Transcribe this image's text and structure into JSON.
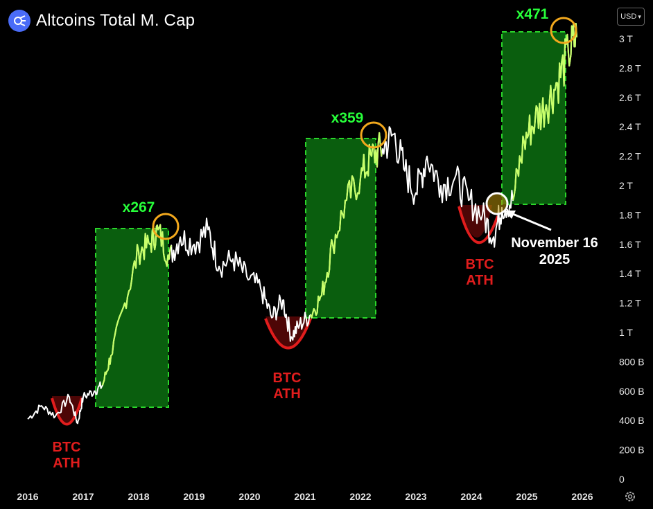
{
  "header": {
    "title": "Altcoins Total M. Cap",
    "currency": "USD"
  },
  "colors": {
    "line": "#ffffff",
    "highlight": "#27ff3a",
    "box_fill": "#0c6e10",
    "box_stroke": "#2bd62b",
    "circle": "#f2a81d",
    "btc": "#e11d1d"
  },
  "chart_data": {
    "type": "line",
    "title": "Altcoins Total M. Cap",
    "series": [
      {
        "values": [
          [
            2016.0,
            410
          ],
          [
            2016.25,
            500
          ],
          [
            2016.5,
            430
          ],
          [
            2016.75,
            560
          ],
          [
            2016.9,
            380
          ],
          [
            2017.0,
            560
          ],
          [
            2017.2,
            600
          ],
          [
            2017.35,
            640
          ],
          [
            2017.5,
            840
          ],
          [
            2017.75,
            1200
          ],
          [
            2018.0,
            1550
          ],
          [
            2018.2,
            1600
          ],
          [
            2018.35,
            1700
          ],
          [
            2018.55,
            1500
          ],
          [
            2018.75,
            1650
          ],
          [
            2019.0,
            1600
          ],
          [
            2019.25,
            1700
          ],
          [
            2019.45,
            1450
          ],
          [
            2019.7,
            1500
          ],
          [
            2019.95,
            1380
          ],
          [
            2020.2,
            1300
          ],
          [
            2020.4,
            1100
          ],
          [
            2020.6,
            1220
          ],
          [
            2020.75,
            970
          ],
          [
            2020.9,
            1050
          ],
          [
            2021.1,
            1120
          ],
          [
            2021.3,
            1250
          ],
          [
            2021.5,
            1600
          ],
          [
            2021.75,
            1900
          ],
          [
            2022.0,
            2050
          ],
          [
            2022.2,
            2200
          ],
          [
            2022.4,
            2250
          ],
          [
            2022.6,
            2350
          ],
          [
            2022.8,
            2100
          ],
          [
            2023.0,
            1950
          ],
          [
            2023.2,
            2200
          ],
          [
            2023.45,
            2000
          ],
          [
            2023.7,
            2050
          ],
          [
            2023.95,
            1900
          ],
          [
            2024.2,
            1800
          ],
          [
            2024.4,
            1650
          ],
          [
            2024.55,
            1850
          ],
          [
            2024.75,
            1900
          ],
          [
            2024.95,
            2300
          ],
          [
            2025.15,
            2450
          ],
          [
            2025.35,
            2550
          ],
          [
            2025.55,
            2700
          ],
          [
            2025.75,
            2900
          ],
          [
            2025.9,
            3010
          ]
        ]
      }
    ],
    "y_axis": {
      "ticks": [
        "0",
        "200 B",
        "400 B",
        "600 B",
        "800 B",
        "1 T",
        "1.2 T",
        "1.4 T",
        "1.6 T",
        "1.8 T",
        "2 T",
        "2.2 T",
        "2.4 T",
        "2.6 T",
        "2.8 T",
        "3 T"
      ],
      "range_billions": [
        0,
        3000
      ]
    },
    "x_axis": {
      "ticks": [
        "2016",
        "2017",
        "2018",
        "2019",
        "2020",
        "2021",
        "2022",
        "2023",
        "2024",
        "2025",
        "2026"
      ],
      "range_years": [
        2015.5,
        2026.5
      ]
    },
    "annotations": {
      "multipliers": [
        "x267",
        "x359",
        "x471"
      ],
      "btc_ath_lines": [
        "BTC",
        "ATH"
      ],
      "callout": [
        "November 16",
        "2025"
      ]
    }
  }
}
